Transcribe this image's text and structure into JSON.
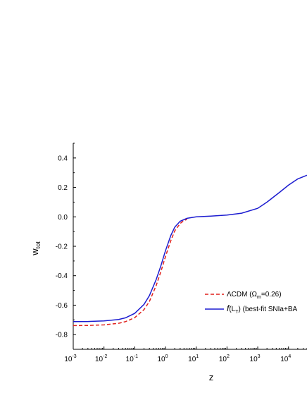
{
  "chart_data": {
    "type": "line",
    "xlabel": "z",
    "ylabel": "w",
    "ylabel_sub": "tot",
    "x_scale": "log",
    "xlim": [
      0.001,
      40000
    ],
    "ylim": [
      -0.9,
      0.5
    ],
    "x_ticks": [
      0.001,
      0.01,
      0.1,
      1,
      10,
      100,
      1000,
      10000
    ],
    "x_tick_labels": [
      {
        "base": "10",
        "exp": "-3"
      },
      {
        "base": "10",
        "exp": "-2"
      },
      {
        "base": "10",
        "exp": "-1"
      },
      {
        "base": "10",
        "exp": "0"
      },
      {
        "base": "10",
        "exp": "1"
      },
      {
        "base": "10",
        "exp": "2"
      },
      {
        "base": "10",
        "exp": "3"
      },
      {
        "base": "10",
        "exp": "4"
      }
    ],
    "y_ticks": [
      0.4,
      0.2,
      0.0,
      -0.2,
      -0.4,
      -0.6,
      -0.8
    ],
    "y_tick_labels": [
      "0.4",
      "0.2",
      "0.0",
      "-0.2",
      "-0.4",
      "-0.6",
      "-0.8"
    ],
    "grid": false,
    "legend_position": "bottom-right",
    "series": [
      {
        "legend_main": "ΛCDM (Ω",
        "legend_sub": "m",
        "legend_tail": "=0.26)",
        "color": "#e0201c",
        "dash": "dashed",
        "x": [
          0.001,
          0.003,
          0.01,
          0.03,
          0.05,
          0.1,
          0.2,
          0.3,
          0.5,
          0.7,
          1.0,
          1.5,
          2.0,
          3.0,
          4.0,
          5.0
        ],
        "y": [
          -0.739,
          -0.738,
          -0.734,
          -0.723,
          -0.712,
          -0.685,
          -0.63,
          -0.575,
          -0.465,
          -0.375,
          -0.27,
          -0.16,
          -0.095,
          -0.045,
          -0.025,
          -0.018
        ]
      },
      {
        "legend_pre": "f",
        "legend_main": "(L",
        "legend_sub": "T",
        "legend_tail": ")  (best-fit SNIa+BA",
        "color": "#1c1cd0",
        "dash": "solid",
        "x": [
          0.001,
          0.003,
          0.01,
          0.03,
          0.05,
          0.1,
          0.2,
          0.3,
          0.5,
          0.7,
          1.0,
          1.5,
          2.0,
          3.0,
          5.0,
          10,
          30,
          100,
          300,
          1000,
          2000,
          5000,
          10000,
          20000,
          40000
        ],
        "y": [
          -0.712,
          -0.711,
          -0.707,
          -0.697,
          -0.686,
          -0.656,
          -0.595,
          -0.535,
          -0.425,
          -0.335,
          -0.23,
          -0.125,
          -0.07,
          -0.03,
          -0.01,
          0.0,
          0.005,
          0.012,
          0.025,
          0.058,
          0.1,
          0.165,
          0.215,
          0.258,
          0.283
        ]
      }
    ]
  }
}
